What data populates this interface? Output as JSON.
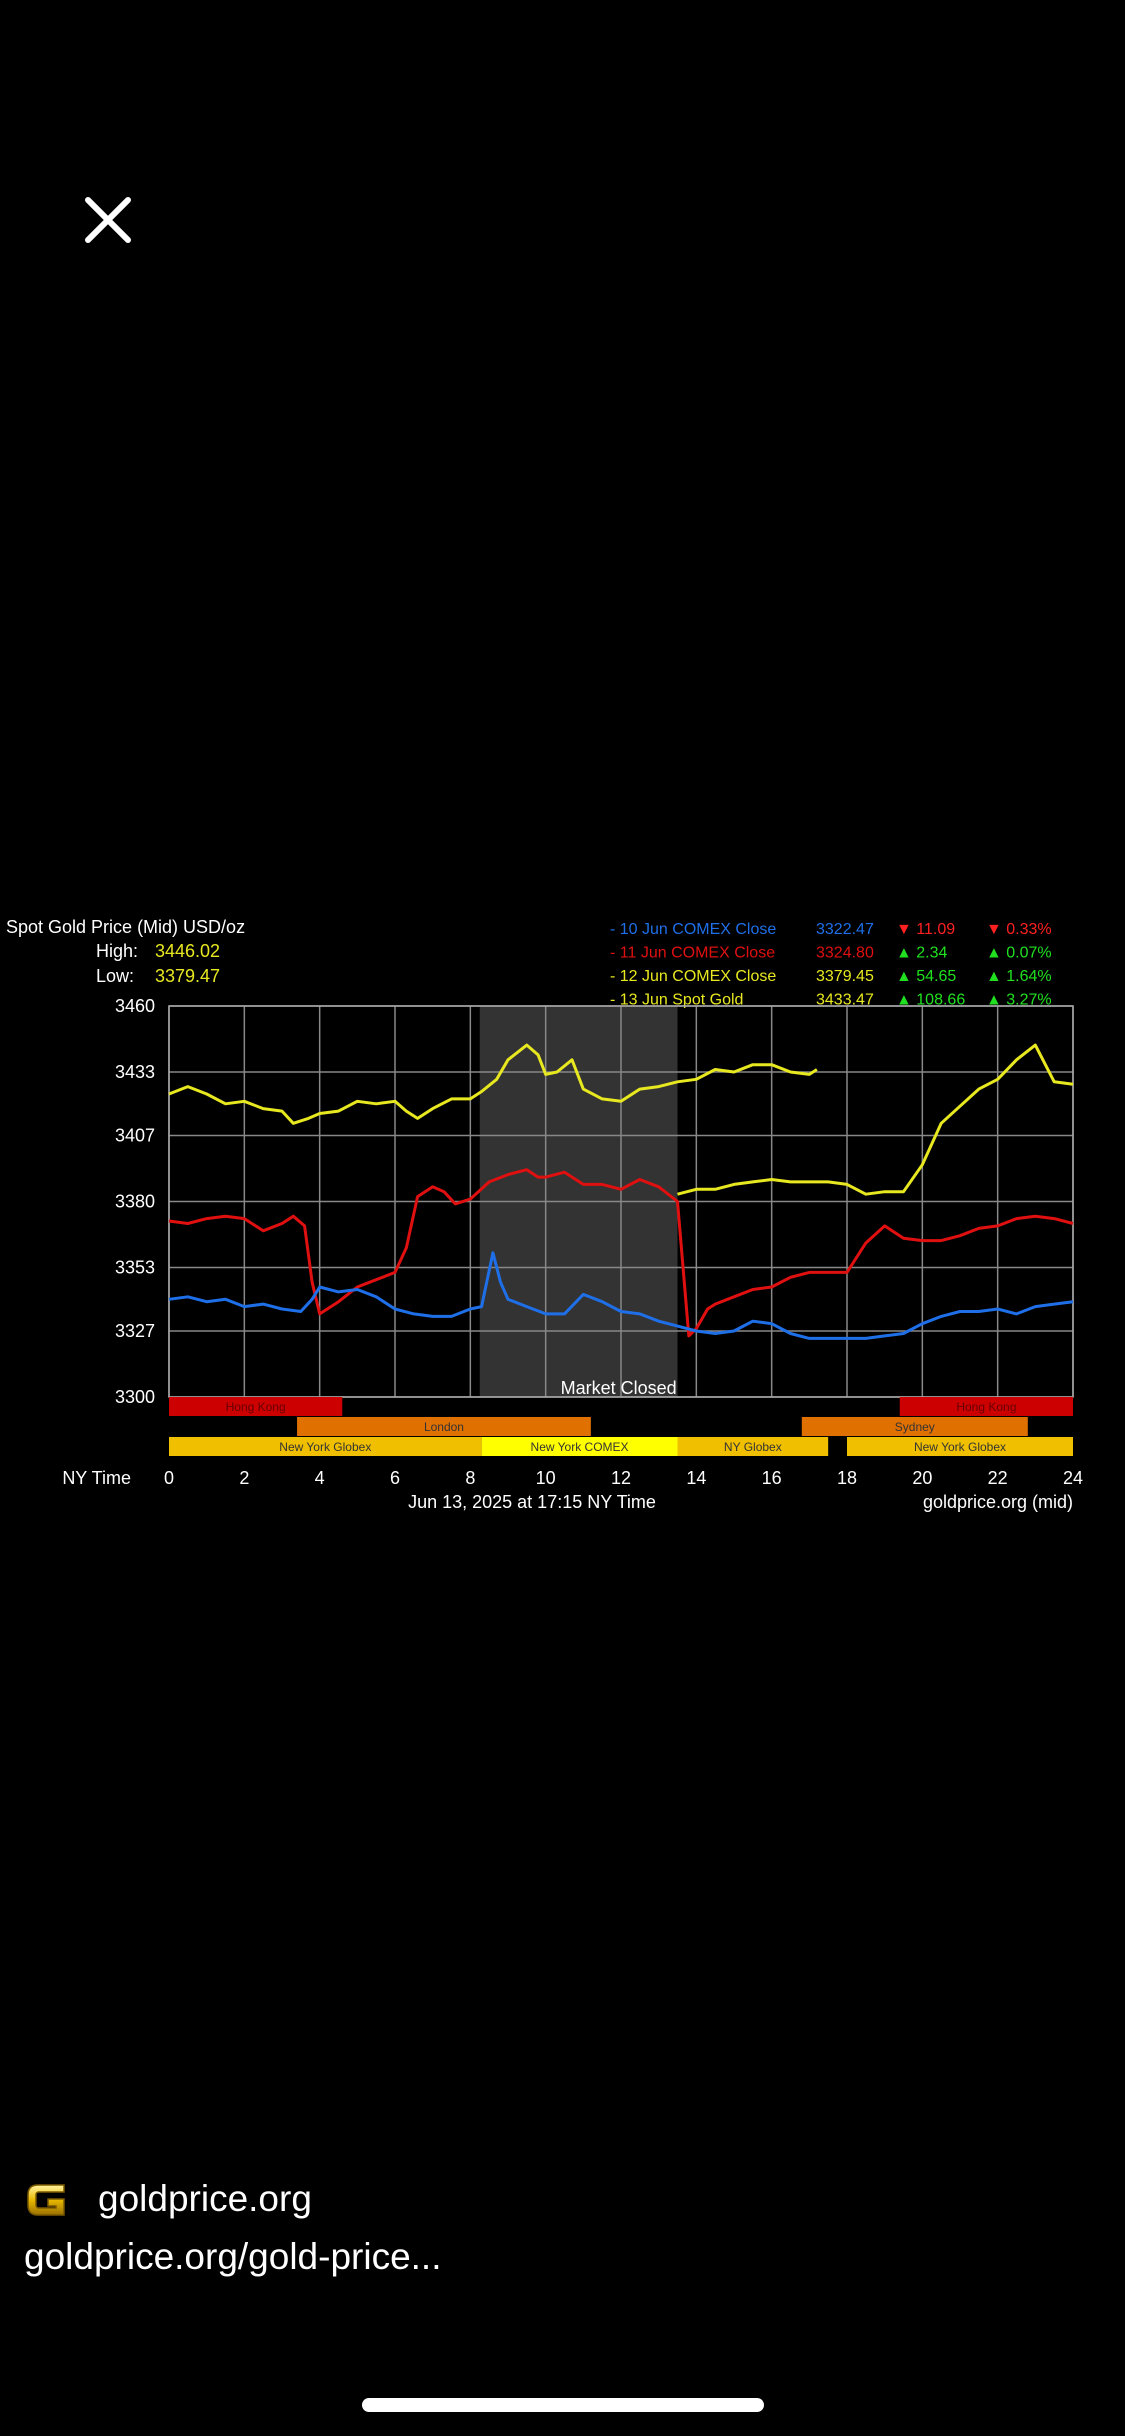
{
  "icons": {
    "close": "close-icon",
    "site_logo": "goldprice-logo-icon"
  },
  "footer": {
    "site_name": "goldprice.org",
    "url": "goldprice.org/gold-price..."
  },
  "chart_data": {
    "type": "line",
    "title": "Spot Gold Price (Mid) USD/oz",
    "high_label": "High:",
    "high_value": "3446.02",
    "low_label": "Low:",
    "low_value": "3379.47",
    "xlabel": "NY Time",
    "subtitle": "Jun 13, 2025 at 17:15 NY Time",
    "source": "goldprice.org (mid)",
    "xlim": [
      0,
      24
    ],
    "ylim": [
      3300,
      3460
    ],
    "xticks": [
      0,
      2,
      4,
      6,
      8,
      10,
      12,
      14,
      16,
      18,
      20,
      22,
      24
    ],
    "yticks": [
      3300,
      3327,
      3353,
      3380,
      3407,
      3433,
      3460
    ],
    "grid": true,
    "legend_position": "top-right",
    "market_closed": {
      "label": "Market Closed",
      "from": 8.25,
      "to": 13.5
    },
    "legend": [
      {
        "label": "- 10 Jun COMEX Close",
        "price": "3322.47",
        "change": "11.09",
        "pct": "0.33%",
        "direction": "down",
        "color": "#1e6fe8"
      },
      {
        "label": "- 11 Jun COMEX Close",
        "price": "3324.80",
        "change": "2.34",
        "pct": "0.07%",
        "direction": "up",
        "color": "#e01010"
      },
      {
        "label": "- 12 Jun COMEX Close",
        "price": "3379.45",
        "change": "54.65",
        "pct": "1.64%",
        "direction": "up",
        "color": "#e8e820"
      },
      {
        "label": "- 13 Jun Spot Gold",
        "price": "3433.47",
        "change": "108.66",
        "pct": "3.27%",
        "direction": "up",
        "color": "#e8e820"
      }
    ],
    "sessions": [
      {
        "label": "Hong Kong",
        "row": 0,
        "from": 0,
        "to": 4.6,
        "color": "#cc0000"
      },
      {
        "label": "Hong Kong",
        "row": 0,
        "from": 19.4,
        "to": 24,
        "color": "#cc0000"
      },
      {
        "label": "London",
        "row": 1,
        "from": 3.4,
        "to": 11.2,
        "color": "#e07000"
      },
      {
        "label": "Sydney",
        "row": 1,
        "from": 16.8,
        "to": 22.8,
        "color": "#e07000"
      },
      {
        "label": "New York Globex",
        "row": 2,
        "from": 0,
        "to": 8.3,
        "color": "#f0c000"
      },
      {
        "label": "New York COMEX",
        "row": 2,
        "from": 8.3,
        "to": 13.5,
        "color": "#ffff00"
      },
      {
        "label": "NY Globex",
        "row": 2,
        "from": 13.5,
        "to": 17.5,
        "color": "#f0c000"
      },
      {
        "label": "New York Globex",
        "row": 2,
        "from": 18,
        "to": 24,
        "color": "#f0c000"
      }
    ],
    "series": [
      {
        "color": "#e8e820",
        "x": [
          0,
          0.5,
          1,
          1.5,
          2,
          2.5,
          3,
          3.3,
          3.7,
          4,
          4.5,
          5,
          5.5,
          6,
          6.3,
          6.6,
          7,
          7.5,
          8,
          8.3,
          8.7,
          9,
          9.5,
          9.8,
          10,
          10.3,
          10.7,
          11,
          11.5,
          12,
          12.5,
          13,
          13.5,
          14,
          14.5,
          15,
          15.5,
          16,
          16.5,
          17,
          17.2
        ],
        "y": [
          3424,
          3427,
          3424,
          3420,
          3421,
          3418,
          3417,
          3412,
          3414,
          3416,
          3417,
          3421,
          3420,
          3421,
          3417,
          3414,
          3418,
          3422,
          3422,
          3425,
          3430,
          3438,
          3444,
          3440,
          3432,
          3433,
          3438,
          3426,
          3422,
          3421,
          3426,
          3427,
          3429,
          3430,
          3434,
          3433,
          3436,
          3436,
          3433,
          3432,
          3434
        ]
      },
      {
        "color": "#e8e820",
        "x": [
          13.5,
          14,
          14.5,
          15,
          15.5,
          16,
          16.5,
          17,
          17.5,
          18,
          18.5,
          19,
          19.5,
          20,
          20.5,
          21,
          21.5,
          22,
          22.5,
          23,
          23.5,
          24
        ],
        "y": [
          3383,
          3385,
          3385,
          3387,
          3388,
          3389,
          3388,
          3388,
          3388,
          3387,
          3383,
          3384,
          3384,
          3395,
          3412,
          3419,
          3426,
          3430,
          3438,
          3444,
          3429,
          3428
        ]
      },
      {
        "color": "#e01010",
        "x": [
          0,
          0.5,
          1,
          1.5,
          2,
          2.5,
          3,
          3.3,
          3.6,
          3.8,
          4,
          4.5,
          5,
          5.5,
          6,
          6.3,
          6.6,
          7,
          7.3,
          7.6,
          8,
          8.5,
          9,
          9.5,
          9.8,
          10,
          10.5,
          11,
          11.5,
          12,
          12.5,
          13,
          13.5,
          13.8,
          14,
          14.3,
          14.5,
          15,
          15.5,
          16,
          16.5,
          17,
          17.5,
          18,
          18.5,
          19,
          19.5,
          20,
          20.5,
          21,
          21.5,
          22,
          22.5,
          23,
          23.5,
          24
        ],
        "y": [
          3372,
          3371,
          3373,
          3374,
          3373,
          3368,
          3371,
          3374,
          3370,
          3347,
          3334,
          3339,
          3345,
          3348,
          3351,
          3361,
          3382,
          3386,
          3384,
          3379,
          3381,
          3388,
          3391,
          3393,
          3390,
          3390,
          3392,
          3387,
          3387,
          3385,
          3389,
          3386,
          3380,
          3325,
          3328,
          3336,
          3338,
          3341,
          3344,
          3345,
          3349,
          3351,
          3351,
          3351,
          3363,
          3370,
          3365,
          3364,
          3364,
          3366,
          3369,
          3370,
          3373,
          3374,
          3373,
          3371
        ]
      },
      {
        "color": "#1e6fe8",
        "x": [
          0,
          0.5,
          1,
          1.5,
          2,
          2.5,
          3,
          3.5,
          3.8,
          4,
          4.5,
          5,
          5.5,
          6,
          6.5,
          7,
          7.5,
          8,
          8.3,
          8.6,
          8.8,
          9,
          9.5,
          10,
          10.5,
          11,
          11.5,
          12,
          12.5,
          13,
          13.5,
          14,
          14.5,
          15,
          15.5,
          16,
          16.5,
          17,
          17.5,
          18,
          18.5,
          19,
          19.5,
          20,
          20.5,
          21,
          21.5,
          22,
          22.5,
          23,
          23.5,
          24
        ],
        "y": [
          3340,
          3341,
          3339,
          3340,
          3337,
          3338,
          3336,
          3335,
          3340,
          3345,
          3343,
          3344,
          3341,
          3336,
          3334,
          3333,
          3333,
          3336,
          3337,
          3359,
          3347,
          3340,
          3337,
          3334,
          3334,
          3342,
          3339,
          3335,
          3334,
          3331,
          3329,
          3327,
          3326,
          3327,
          3331,
          3330,
          3326,
          3324,
          3324,
          3324,
          3324,
          3325,
          3326,
          3330,
          3333,
          3335,
          3335,
          3336,
          3334,
          3337,
          3338,
          3339
        ]
      }
    ]
  }
}
